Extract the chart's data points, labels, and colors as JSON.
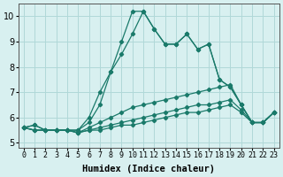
{
  "xlabel": "Humidex (Indice chaleur)",
  "ylabel": "",
  "bg_color": "#d8f0f0",
  "grid_color": "#b0d8d8",
  "line_color": "#1a7a6a",
  "xlim": [
    -0.5,
    23.5
  ],
  "ylim": [
    4.8,
    10.5
  ],
  "yticks": [
    5,
    6,
    7,
    8,
    9,
    10
  ],
  "xtick_labels": [
    "0",
    "1",
    "2",
    "3",
    "4",
    "5",
    "6",
    "7",
    "8",
    "9",
    "10",
    "11",
    "12",
    "13",
    "14",
    "15",
    "16",
    "17",
    "18",
    "19",
    "20",
    "21",
    "22",
    "23"
  ],
  "series": [
    [
      5.6,
      5.7,
      5.5,
      5.5,
      5.5,
      5.5,
      6.0,
      7.0,
      7.8,
      9.0,
      10.2,
      10.2,
      9.5,
      8.9,
      8.9,
      9.3,
      8.7,
      8.9,
      7.5,
      7.2,
      6.5,
      5.8,
      5.8,
      6.2
    ],
    [
      5.6,
      5.7,
      5.5,
      5.5,
      5.5,
      5.5,
      5.8,
      6.5,
      7.8,
      8.5,
      9.3,
      10.2,
      9.5,
      8.9,
      8.9,
      9.3,
      8.7,
      8.9,
      7.5,
      7.2,
      6.5,
      5.8,
      5.8,
      6.2
    ],
    [
      5.6,
      5.5,
      5.5,
      5.5,
      5.5,
      5.4,
      5.6,
      5.8,
      6.0,
      6.2,
      6.4,
      6.5,
      6.6,
      6.7,
      6.8,
      6.9,
      7.0,
      7.1,
      7.2,
      7.3,
      6.5,
      5.8,
      5.8,
      6.2
    ],
    [
      5.6,
      5.5,
      5.5,
      5.5,
      5.5,
      5.4,
      5.5,
      5.6,
      5.7,
      5.8,
      5.9,
      6.0,
      6.1,
      6.2,
      6.3,
      6.4,
      6.5,
      6.5,
      6.6,
      6.7,
      6.3,
      5.8,
      5.8,
      6.2
    ],
    [
      5.6,
      5.5,
      5.5,
      5.5,
      5.5,
      5.4,
      5.5,
      5.5,
      5.6,
      5.7,
      5.7,
      5.8,
      5.9,
      6.0,
      6.1,
      6.2,
      6.2,
      6.3,
      6.4,
      6.5,
      6.2,
      5.8,
      5.8,
      6.2
    ]
  ]
}
